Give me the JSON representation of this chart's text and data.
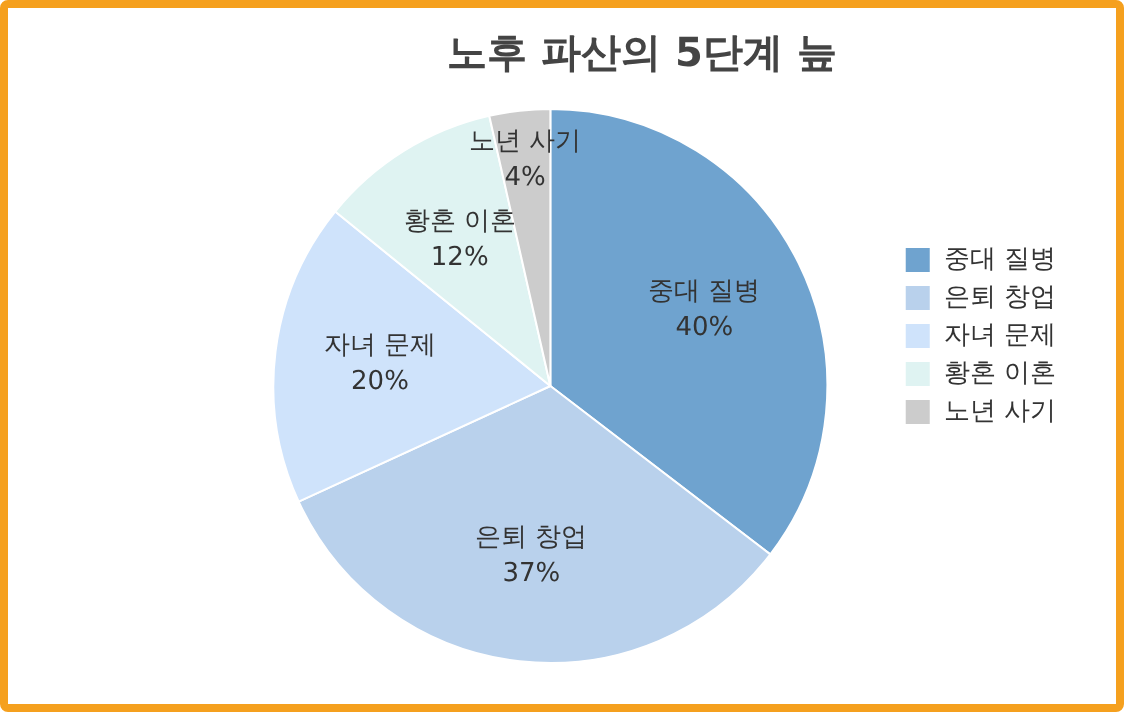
{
  "chart_data": {
    "type": "pie",
    "title": "노후 파산의 5단계 늪",
    "categories": [
      "중대 질병",
      "은퇴 창업",
      "자녀 문제",
      "황혼 이혼",
      "노년 사기"
    ],
    "values": [
      40,
      37,
      20,
      12,
      4
    ],
    "value_labels": [
      "40%",
      "37%",
      "20%",
      "12%",
      "4%"
    ],
    "colors": [
      "#6fa3cf",
      "#b9d1ec",
      "#cfe3fb",
      "#dff3f2",
      "#cccccc"
    ],
    "legend": "right"
  }
}
